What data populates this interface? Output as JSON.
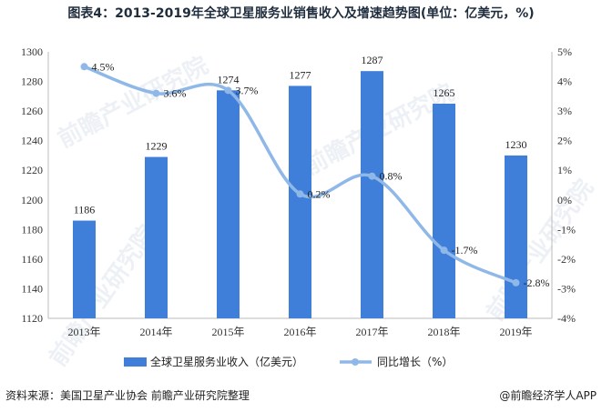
{
  "chart_data": {
    "type": "bar",
    "title": "图表4：2013-2019年全球卫星服务业销售收入及增速趋势图(单位：亿美元，%)",
    "categories": [
      "2013年",
      "2014年",
      "2015年",
      "2016年",
      "2017年",
      "2018年",
      "2019年"
    ],
    "series": [
      {
        "name": "全球卫星服务业收入（亿美元）",
        "type": "bar",
        "axis": "left",
        "values": [
          1186,
          1229,
          1274,
          1277,
          1287,
          1265,
          1230
        ],
        "labels": [
          "1186",
          "1229",
          "1274",
          "1277",
          "1287",
          "1265",
          "1230"
        ],
        "color": "#3f7fd9"
      },
      {
        "name": "同比增长（%）",
        "type": "line",
        "axis": "right",
        "values": [
          4.5,
          3.6,
          3.7,
          0.2,
          0.8,
          -1.7,
          -2.8
        ],
        "labels": [
          "4.5%",
          "3.6%",
          "3.7%",
          "0.2%",
          "0.8%",
          "-1.7%",
          "-2.8%"
        ],
        "color": "#8fb8e8"
      }
    ],
    "ylim_left": [
      1120,
      1300
    ],
    "yticks_left": [
      "1120",
      "1140",
      "1160",
      "1180",
      "1200",
      "1220",
      "1240",
      "1260",
      "1280",
      "1300"
    ],
    "ylim_right": [
      -4,
      5
    ],
    "yticks_right": [
      "-4%",
      "-3%",
      "-2%",
      "-1%",
      "0%",
      "1%",
      "2%",
      "3%",
      "4%",
      "5%"
    ],
    "grid": false,
    "legend": "bottom"
  },
  "footer": {
    "source": "资料来源：美国卫星产业协会 前瞻产业研究院整理",
    "brand": "@前瞻经济学人APP"
  },
  "watermark": {
    "text": "前瞻产业研究院"
  }
}
